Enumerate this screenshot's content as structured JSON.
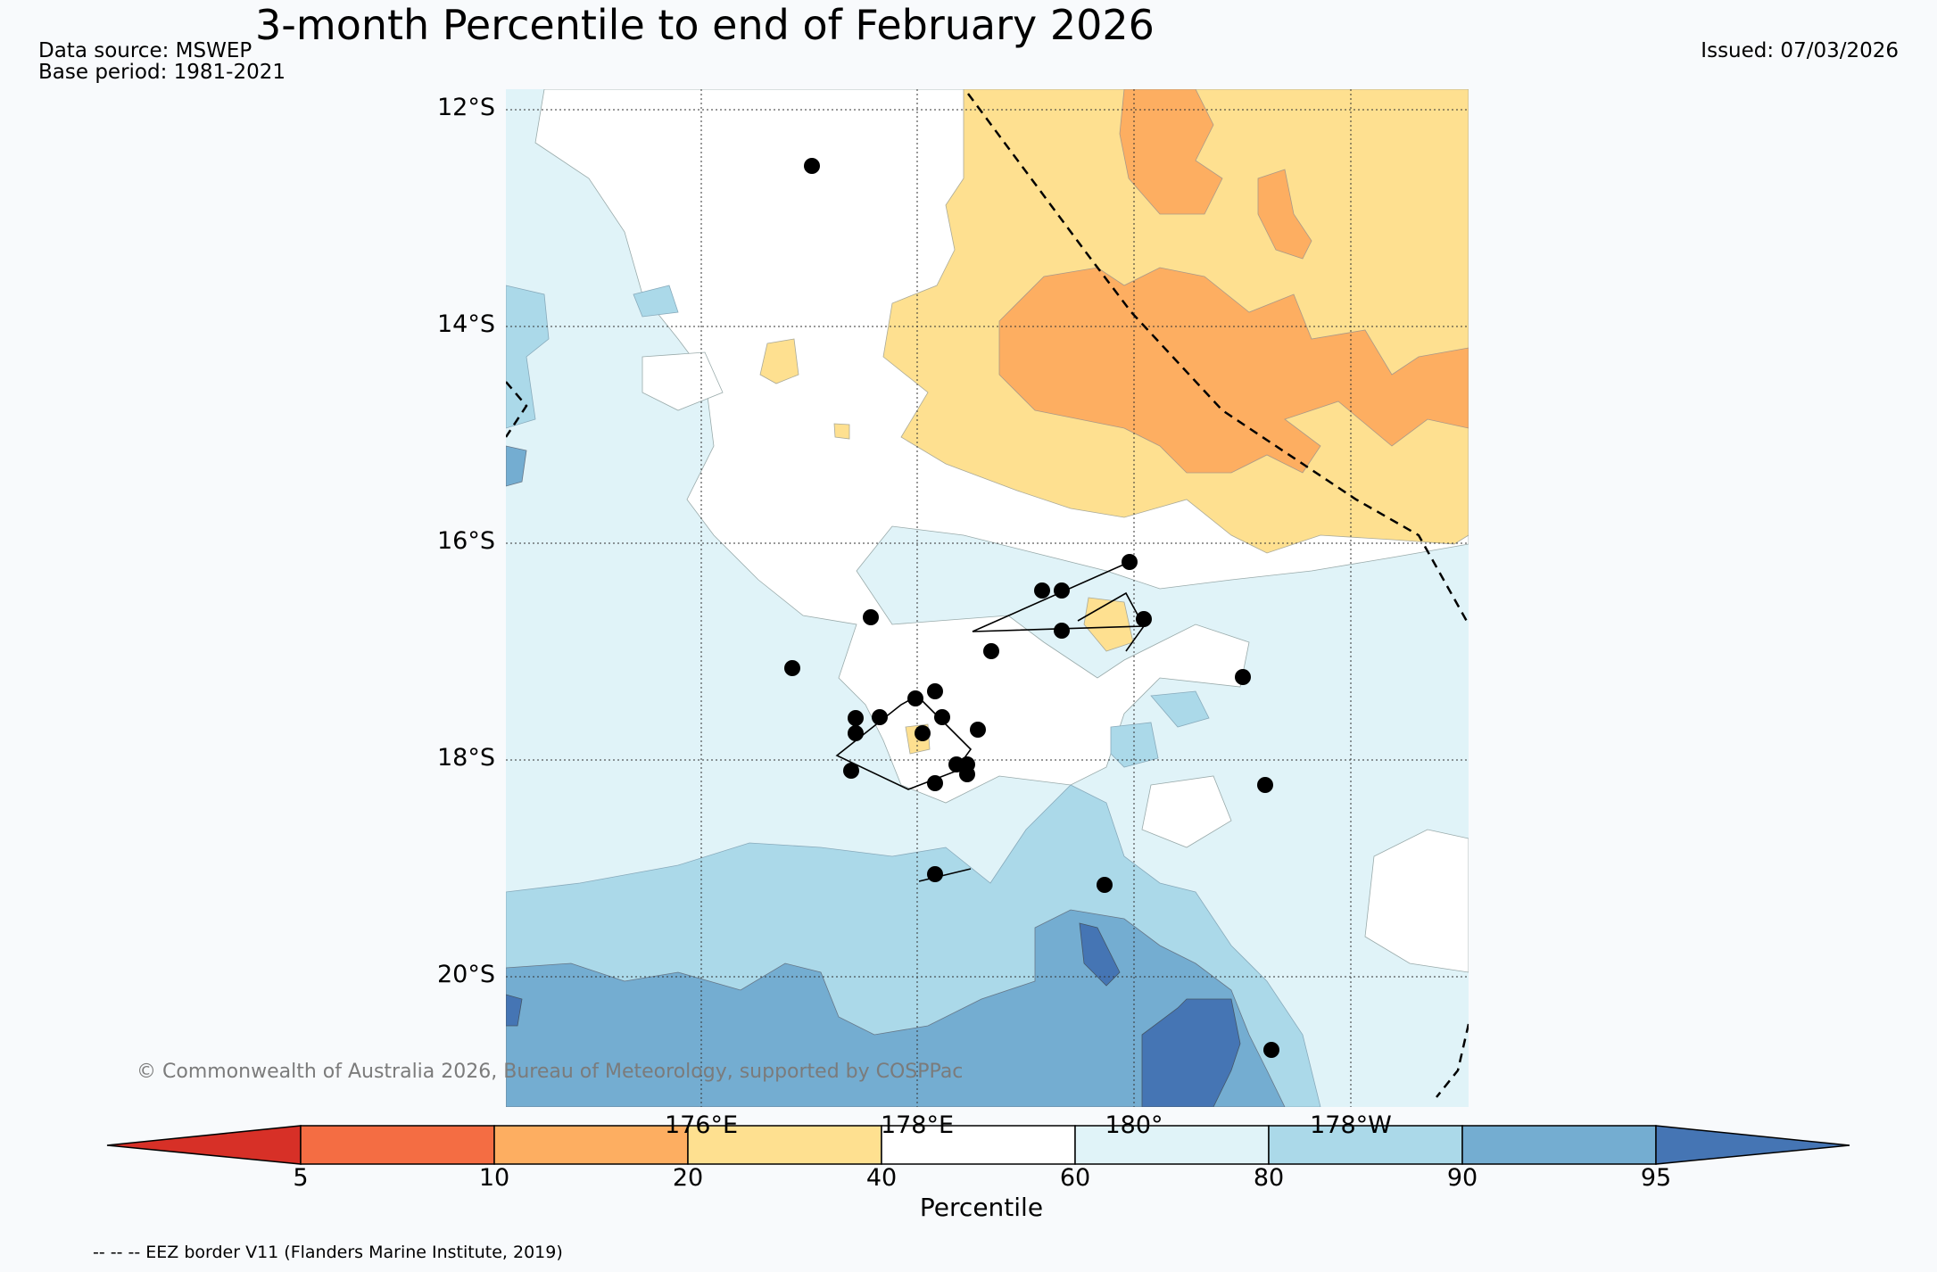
{
  "title": "3-month Percentile to end of February 2026",
  "data_source": "Data source: MSWEP",
  "base_period": "Base period: 1981-2021",
  "issued": "Issued: 07/03/2026",
  "lat_labels": [
    "12°S",
    "14°S",
    "16°S",
    "18°S",
    "20°S"
  ],
  "lon_labels": [
    "176°E",
    "178°E",
    "180°",
    "178°W"
  ],
  "copyright": "© Commonwealth of Australia 2026, Bureau of Meteorology, supported by COSPPac",
  "colorbar": {
    "title": "Percentile",
    "ticks": [
      "5",
      "10",
      "20",
      "40",
      "60",
      "80",
      "90",
      "95"
    ],
    "colors": [
      "#d73027",
      "#f46d43",
      "#fdae61",
      "#fee090",
      "#ffffff",
      "#e0f3f8",
      "#abd9e9",
      "#74add1",
      "#4575b4"
    ]
  },
  "legend_note": "-- -- -- EEZ border V11 (Flanders Marine Institute, 2019)"
}
